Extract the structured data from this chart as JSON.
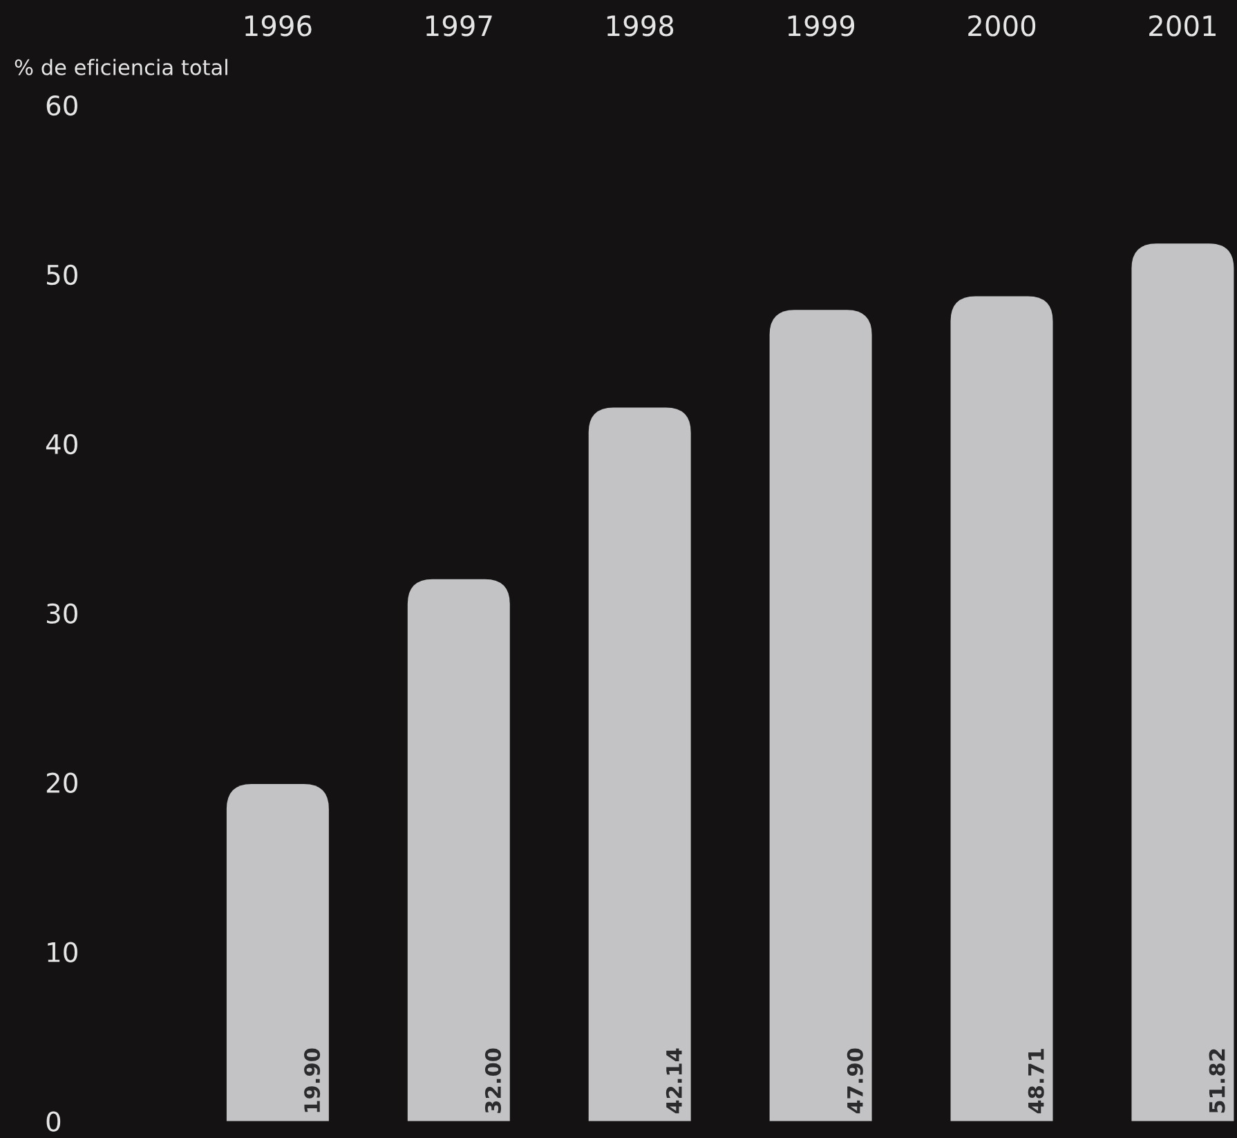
{
  "chart_data": {
    "type": "bar",
    "ylabel": "% de eficiencia total",
    "categories": [
      "1996",
      "1997",
      "1998",
      "1999",
      "2000",
      "2001"
    ],
    "values": [
      19.9,
      32.0,
      42.14,
      47.9,
      48.71,
      51.82
    ],
    "value_labels": [
      "19.90",
      "32.00",
      "42.14",
      "47.90",
      "48.71",
      "51.82"
    ],
    "color": "#c3c3c5",
    "ylim": [
      -1,
      60
    ],
    "yticks": [
      0,
      10,
      20,
      30,
      40,
      50,
      60
    ],
    "grid": false
  }
}
